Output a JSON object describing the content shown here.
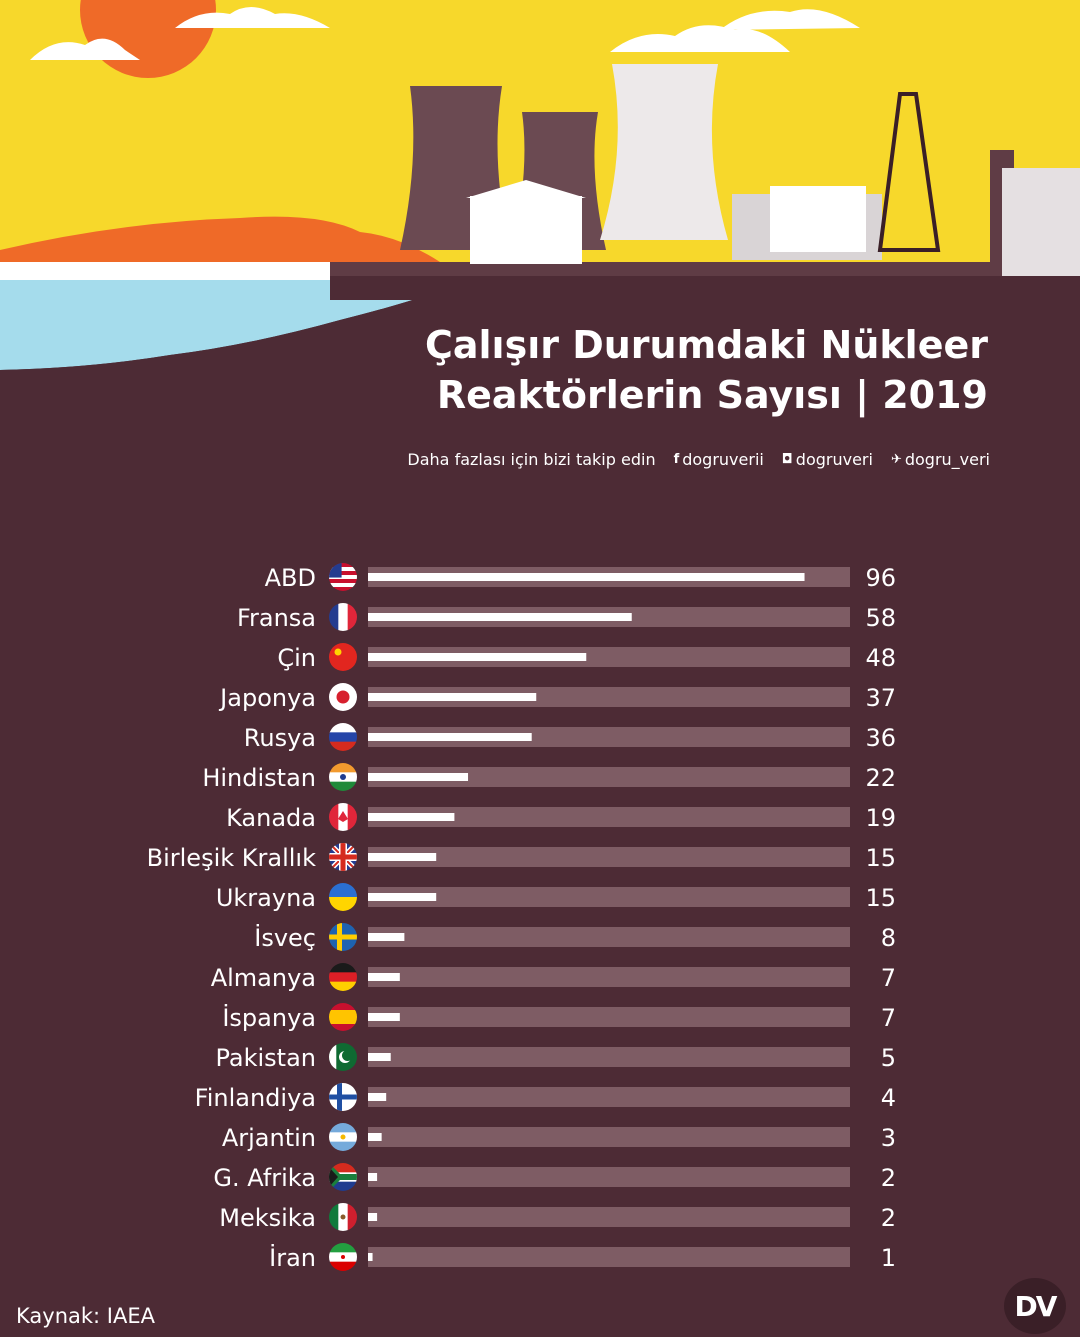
{
  "header": {
    "title_line1": "Çalışır Durumdaki Nükleer",
    "title_line2": "Reaktörlerin Sayısı  | 2019",
    "follow_text": "Daha fazlası için bizi takip edin",
    "social": [
      {
        "icon": "facebook-icon",
        "handle": "dogruverii"
      },
      {
        "icon": "instagram-icon",
        "handle": "dogruveri"
      },
      {
        "icon": "twitter-icon",
        "handle": "dogru_veri"
      }
    ]
  },
  "footer": {
    "source": "Kaynak: IAEA",
    "logo_text": "DV"
  },
  "colors": {
    "background": "#4d2b35",
    "bar_track": "#7e5c64",
    "bar_fill": "#ffffff",
    "sky": "#f7d82b",
    "sun": "#ef6a28",
    "sea": "#a5dcec"
  },
  "chart_data": {
    "type": "bar",
    "orientation": "horizontal",
    "xlim": [
      0,
      106
    ],
    "categories": [
      "ABD",
      "Fransa",
      "Çin",
      "Japonya",
      "Rusya",
      "Hindistan",
      "Kanada",
      "Birleşik Krallık",
      "Ukrayna",
      "İsveç",
      "Almanya",
      "İspanya",
      "Pakistan",
      "Finlandiya",
      "Arjantin",
      "G. Afrika",
      "Meksika",
      "İran"
    ],
    "values": [
      96,
      58,
      48,
      37,
      36,
      22,
      19,
      15,
      15,
      8,
      7,
      7,
      5,
      4,
      3,
      2,
      2,
      1
    ],
    "flags": [
      "usa",
      "france",
      "china",
      "japan",
      "russia",
      "india",
      "canada",
      "uk",
      "ukraine",
      "sweden",
      "germany",
      "spain",
      "pakistan",
      "finland",
      "argentina",
      "south-africa",
      "mexico",
      "iran"
    ]
  }
}
